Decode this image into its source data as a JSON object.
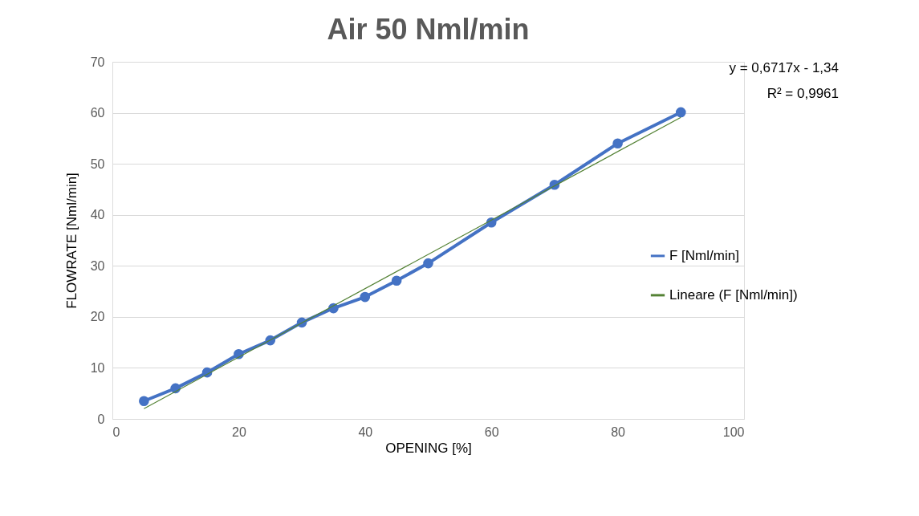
{
  "chart_data": {
    "type": "line",
    "title": "Air 50 Nml/min",
    "xlabel": "OPENING [%]",
    "ylabel": "FLOWRATE [Nml/min]",
    "x": [
      5,
      10,
      15,
      20,
      25,
      30,
      35,
      40,
      45,
      50,
      60,
      70,
      80,
      90
    ],
    "series": [
      {
        "name": "F [Nml/min]",
        "color": "#4472c4",
        "marker": "circle",
        "values": [
          3.5,
          6.0,
          9.1,
          12.7,
          15.4,
          18.9,
          21.7,
          23.9,
          27.1,
          30.5,
          38.5,
          45.9,
          54.0,
          60.1
        ]
      },
      {
        "name": "Lineare (F [Nml/min])",
        "color": "#548235",
        "type": "line",
        "marker": "none",
        "x": [
          5,
          90
        ],
        "values": [
          2.02,
          59.11
        ]
      }
    ],
    "xlim": [
      0,
      100
    ],
    "xticks": [
      0,
      20,
      40,
      60,
      80,
      100
    ],
    "ylim": [
      0,
      70
    ],
    "yticks": [
      0,
      10,
      20,
      30,
      40,
      50,
      60,
      70
    ],
    "grid": "y",
    "legend": "right",
    "annotations": [
      "y = 0,6717x - 1,34",
      "R² = 0,9961"
    ]
  }
}
